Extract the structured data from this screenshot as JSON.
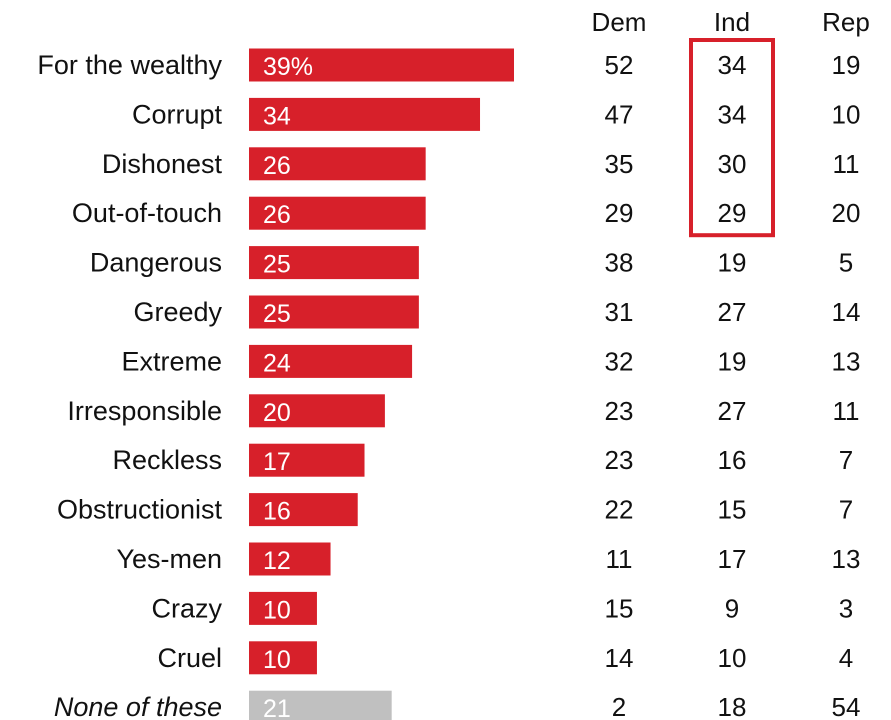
{
  "chart_data": {
    "type": "bar",
    "orientation": "horizontal",
    "categories": [
      "For the wealthy",
      "Corrupt",
      "Dishonest",
      "Out-of-touch",
      "Dangerous",
      "Greedy",
      "Extreme",
      "Irresponsible",
      "Reckless",
      "Obstructionist",
      "Yes-men",
      "Crazy",
      "Cruel",
      "None of these"
    ],
    "values": [
      39,
      34,
      26,
      26,
      25,
      25,
      24,
      20,
      17,
      16,
      12,
      10,
      10,
      21
    ],
    "value_labels": [
      "39%",
      "34",
      "26",
      "26",
      "25",
      "25",
      "24",
      "20",
      "17",
      "16",
      "12",
      "10",
      "10",
      "21"
    ],
    "italic_categories": [
      "None of these"
    ],
    "xlim": [
      0,
      40
    ],
    "grid": false,
    "legend": "none",
    "bar_color": "#d7202a",
    "none_bar_color": "#c0c0c0",
    "table": {
      "columns": [
        "Dem",
        "Ind",
        "Rep"
      ],
      "rows": [
        [
          52,
          34,
          19
        ],
        [
          47,
          34,
          10
        ],
        [
          35,
          30,
          11
        ],
        [
          29,
          29,
          20
        ],
        [
          38,
          19,
          5
        ],
        [
          31,
          27,
          14
        ],
        [
          32,
          19,
          13
        ],
        [
          23,
          27,
          11
        ],
        [
          23,
          16,
          7
        ],
        [
          22,
          15,
          7
        ],
        [
          11,
          17,
          13
        ],
        [
          15,
          9,
          3
        ],
        [
          14,
          10,
          4
        ],
        [
          2,
          18,
          54
        ]
      ],
      "highlight": {
        "column": "Ind",
        "rows": [
          "For the wealthy",
          "Corrupt",
          "Dishonest",
          "Out-of-touch"
        ],
        "color": "#d7202a"
      }
    }
  }
}
